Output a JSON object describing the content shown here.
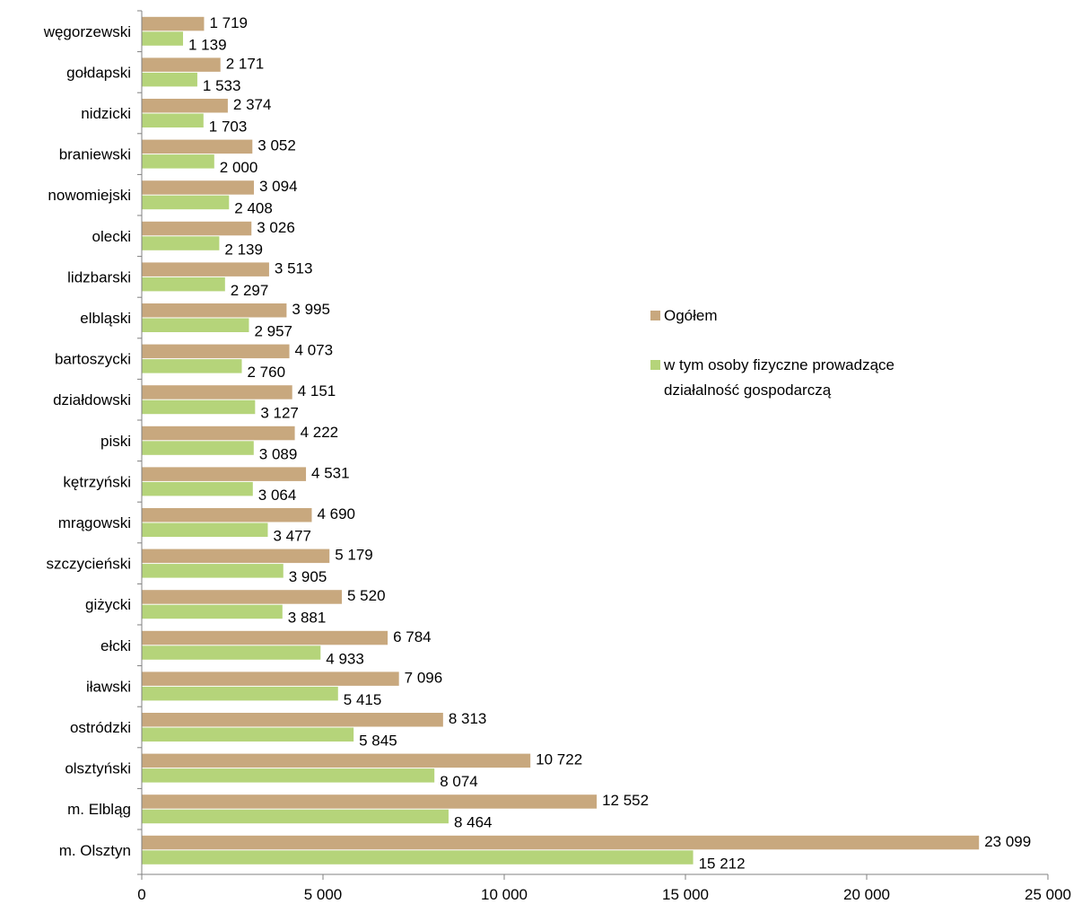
{
  "chart_data": {
    "type": "bar",
    "orientation": "horizontal",
    "categories": [
      "węgorzewski",
      "gołdapski",
      "nidzicki",
      "braniewski",
      "nowomiejski",
      "olecki",
      "lidzbarski",
      "elbląski",
      "bartoszycki",
      "działdowski",
      "piski",
      "kętrzyński",
      "mrągowski",
      "szczycieński",
      "giżycki",
      "ełcki",
      "iławski",
      "ostródzki",
      "olsztyński",
      "m. Elbląg",
      "m. Olsztyn"
    ],
    "series": [
      {
        "name": "Ogółem",
        "color": "#C8A87E",
        "values": [
          1719,
          2171,
          2374,
          3052,
          3094,
          3026,
          3513,
          3995,
          4073,
          4151,
          4222,
          4531,
          4690,
          5179,
          5520,
          6784,
          7096,
          8313,
          10722,
          12552,
          23099
        ],
        "labels": [
          "1 719",
          "2 171",
          "2 374",
          "3 052",
          "3 094",
          "3 026",
          "3 513",
          "3 995",
          "4 073",
          "4 151",
          "4 222",
          "4 531",
          "4 690",
          "5 179",
          "5 520",
          "6 784",
          "7 096",
          "8 313",
          "10 722",
          "12 552",
          "23 099"
        ]
      },
      {
        "name": "w tym osoby fizyczne prowadzące działalność gospodarczą",
        "color": "#B5D47A",
        "name_lines": [
          "w tym osoby fizyczne prowadzące",
          "działalność gospodarczą"
        ],
        "values": [
          1139,
          1533,
          1703,
          2000,
          2408,
          2139,
          2297,
          2957,
          2760,
          3127,
          3089,
          3064,
          3477,
          3905,
          3881,
          4933,
          5415,
          5845,
          8074,
          8464,
          15212
        ],
        "labels": [
          "1 139",
          "1 533",
          "1 703",
          "2 000",
          "2 408",
          "2 139",
          "2 297",
          "2 957",
          "2 760",
          "3 127",
          "3 089",
          "3 064",
          "3 477",
          "3 905",
          "3 881",
          "4 933",
          "5 415",
          "5 845",
          "8 074",
          "8 464",
          "15 212"
        ]
      }
    ],
    "xlim": [
      0,
      25000
    ],
    "xticks": [
      0,
      5000,
      10000,
      15000,
      20000,
      25000
    ],
    "xtick_labels": [
      "0",
      "5 000",
      "10 000",
      "15 000",
      "20 000",
      "25 000"
    ],
    "grid": false,
    "legend_position": "right"
  }
}
